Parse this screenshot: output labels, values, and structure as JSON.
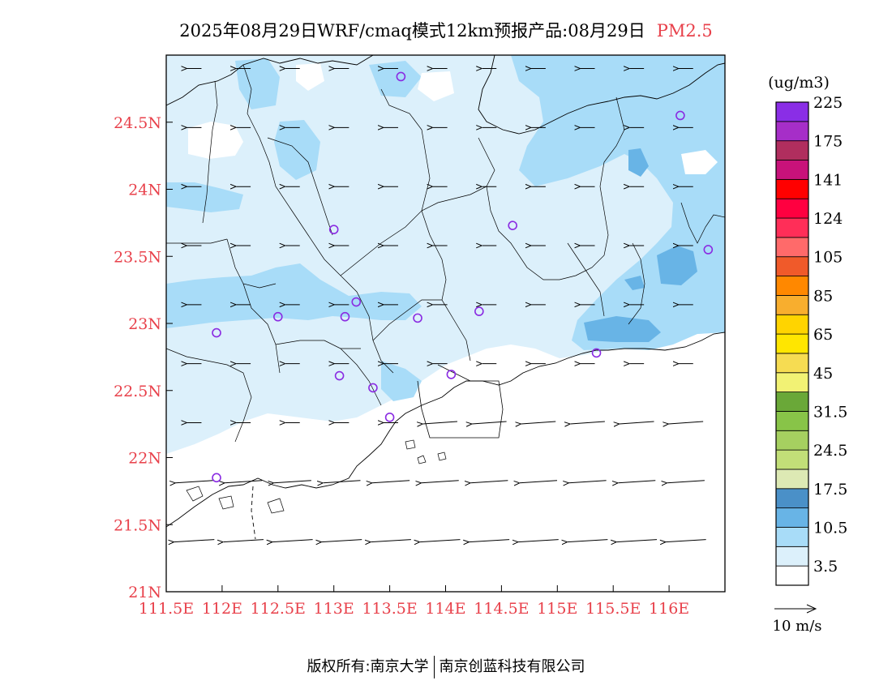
{
  "title": {
    "main": "2025年08月29日WRF/cmaq模式12km预报产品:08月29日",
    "variable": "PM2.5"
  },
  "map": {
    "lon_range": [
      111.5,
      116.5
    ],
    "lat_range": [
      21,
      25
    ],
    "x_ticks": [
      {
        "value": 111.5,
        "label": "111.5E"
      },
      {
        "value": 112,
        "label": "112E"
      },
      {
        "value": 112.5,
        "label": "112.5E"
      },
      {
        "value": 113,
        "label": "113E"
      },
      {
        "value": 113.5,
        "label": "113.5E"
      },
      {
        "value": 114,
        "label": "114E"
      },
      {
        "value": 114.5,
        "label": "114.5E"
      },
      {
        "value": 115,
        "label": "115E"
      },
      {
        "value": 115.5,
        "label": "115.5E"
      },
      {
        "value": 116,
        "label": "116E"
      }
    ],
    "y_ticks": [
      {
        "value": 21,
        "label": "21N"
      },
      {
        "value": 21.5,
        "label": "21.5N"
      },
      {
        "value": 22,
        "label": "22N"
      },
      {
        "value": 22.5,
        "label": "22.5N"
      },
      {
        "value": 23,
        "label": "23N"
      },
      {
        "value": 23.5,
        "label": "23.5N"
      },
      {
        "value": 24,
        "label": "24N"
      },
      {
        "value": 24.5,
        "label": "24.5N"
      }
    ],
    "tick_color": "#e8414b",
    "stations": [
      [
        113.6,
        24.84
      ],
      [
        116.1,
        24.55
      ],
      [
        113.0,
        23.7
      ],
      [
        114.6,
        23.73
      ],
      [
        116.35,
        23.55
      ],
      [
        113.2,
        23.16
      ],
      [
        112.5,
        23.05
      ],
      [
        113.1,
        23.05
      ],
      [
        113.75,
        23.04
      ],
      [
        114.3,
        23.09
      ],
      [
        111.95,
        22.93
      ],
      [
        113.05,
        22.61
      ],
      [
        113.35,
        22.52
      ],
      [
        114.05,
        22.62
      ],
      [
        113.5,
        22.3
      ],
      [
        115.35,
        22.78
      ],
      [
        111.95,
        21.85
      ]
    ],
    "station_color": "#8a2be2"
  },
  "legend": {
    "unit": "(ug/m3)",
    "colors": [
      "#ffffff",
      "#dcf0fb",
      "#a8dcf8",
      "#68b4e6",
      "#4a90c8",
      "#dde9b4",
      "#c2df78",
      "#a6d060",
      "#88c448",
      "#6aa838",
      "#f2f274",
      "#f6dc52",
      "#ffe600",
      "#ffd400",
      "#f8ae2e",
      "#ff8800",
      "#f05a2a",
      "#ff6a6a",
      "#ff2e58",
      "#ff0040",
      "#ff0000",
      "#c8127a",
      "#b02e5e",
      "#a62ec8",
      "#8a2ee6"
    ],
    "labels": [
      "3.5",
      "10.5",
      "17.5",
      "24.5",
      "31.5",
      "45",
      "65",
      "85",
      "105",
      "124",
      "141",
      "175",
      "225"
    ]
  },
  "vector_key": {
    "label": "10 m/s"
  },
  "footer": {
    "left": "版权所有:南京大学",
    "right": "南京创蓝科技有限公司"
  }
}
